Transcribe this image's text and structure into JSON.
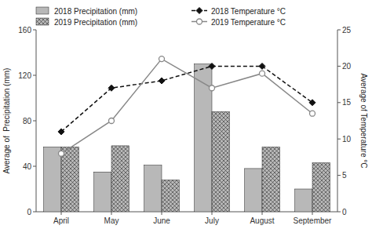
{
  "chart_data": {
    "type": "bar",
    "categories": [
      "April",
      "May",
      "June",
      "July",
      "August",
      "September"
    ],
    "series": [
      {
        "name": "2018 Precipitation (mm)",
        "color": "#b8b8b8",
        "values": [
          57,
          35,
          41,
          130,
          38,
          20
        ]
      },
      {
        "name": "2019 Precipitation (mm)",
        "color": "#b8b8b8",
        "values": [
          57,
          58,
          28,
          88,
          57,
          43
        ]
      },
      {
        "name": "2018 Temperature °C",
        "type": "line",
        "axis": "y2",
        "color": "#111111",
        "line_style": "dashed",
        "marker": "diamond",
        "values": [
          11.0,
          17.0,
          18.0,
          20.0,
          20.0,
          15.0
        ]
      },
      {
        "name": "2019 Temperature °C",
        "type": "line",
        "axis": "y2",
        "color": "#888888",
        "line_style": "solid",
        "marker": "circle",
        "values": [
          8.0,
          12.5,
          21.0,
          17.0,
          19.0,
          13.5
        ]
      }
    ],
    "ylabel": "Average of  Precipitation (mm)",
    "y2label": "Average of Temperature °C",
    "ylim": [
      0,
      160
    ],
    "yticks": [
      0,
      40,
      80,
      120,
      160
    ],
    "y2lim": [
      0,
      25
    ],
    "y2ticks": [
      0,
      5,
      10,
      15,
      20,
      25
    ],
    "grid": false,
    "legend": "upper left"
  }
}
